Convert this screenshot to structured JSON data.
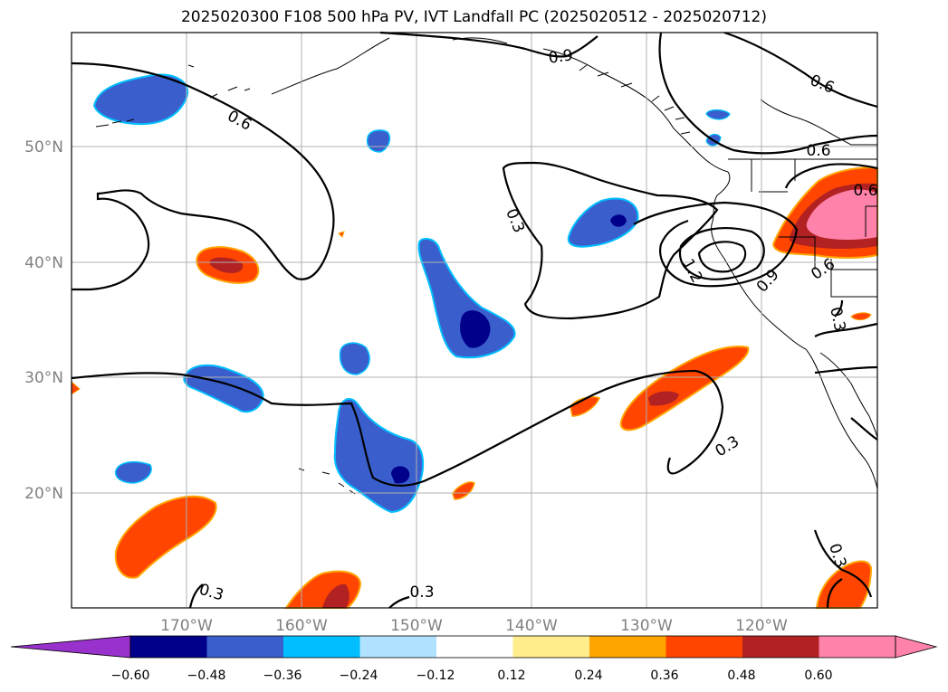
{
  "title": "2025020300 F108 500 hPa PV, IVT Landfall PC (2025020512 - 2025020712)",
  "lat_ticks": [
    "50°N",
    "40°N",
    "30°N",
    "20°N"
  ],
  "lon_ticks": [
    "170°W",
    "160°W",
    "150°W",
    "140°W",
    "130°W",
    "120°W"
  ],
  "contour_labels": [
    "0.9",
    "0.6",
    "0.6",
    "0.6",
    "0.6",
    "0.3",
    "1.2",
    "0.9",
    "0.6",
    "0.3",
    "0.3",
    "0.3",
    "0.3",
    "0.3"
  ],
  "colorbar": {
    "ticks": [
      "−0.60",
      "−0.48",
      "−0.36",
      "−0.24",
      "−0.12",
      "0.12",
      "0.24",
      "0.36",
      "0.48",
      "0.60"
    ],
    "colors": [
      "#9932cc",
      "#00008b",
      "#3a5fcd",
      "#00bfff",
      "#b0e2ff",
      "#ffffff",
      "#ffec8b",
      "#ffa500",
      "#ff4500",
      "#b22222",
      "#ff82ab",
      "#ff82ab"
    ]
  },
  "colors": {
    "land_border": "#000000",
    "grid": "#b0b0b0",
    "contour": "#000000"
  }
}
